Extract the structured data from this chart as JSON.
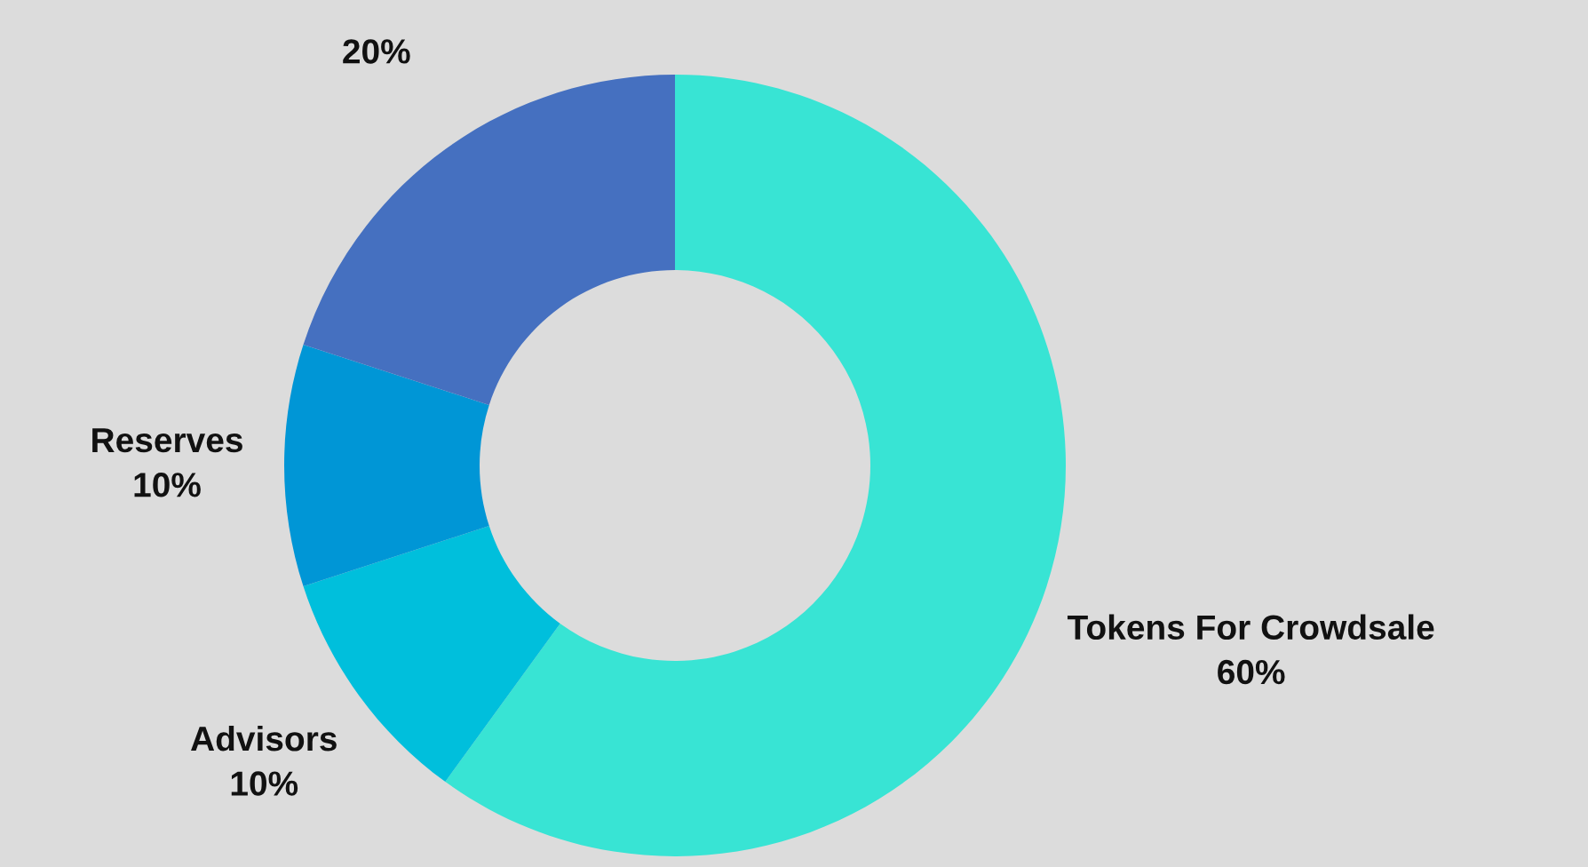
{
  "chart_data": {
    "type": "donut",
    "categories": [
      "Tokens For Crowdsale",
      "Advisors",
      "Reserves",
      null
    ],
    "values": [
      60,
      10,
      10,
      20
    ],
    "value_labels": [
      "60%",
      "10%",
      "10%",
      "20%"
    ],
    "colors": [
      "#38e4d4",
      "#00bfdc",
      "#0096d6",
      "#4570c0"
    ],
    "legend": false
  }
}
